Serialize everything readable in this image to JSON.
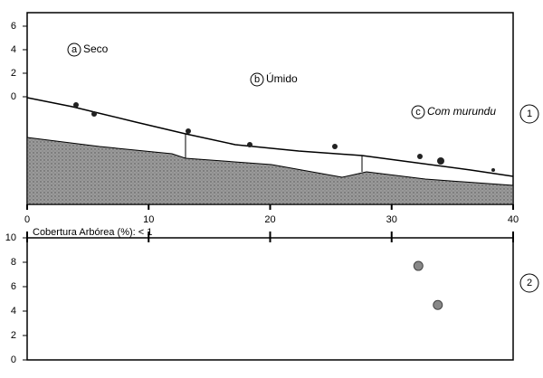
{
  "profile": {
    "ylim": [
      -9.15,
      7.15
    ],
    "yticks": [
      0,
      2,
      4,
      6
    ],
    "xlim": [
      0,
      40
    ],
    "xticks": [
      0,
      10,
      20,
      30,
      40
    ],
    "zones": [
      {
        "letter": "a",
        "label": "Seco"
      },
      {
        "letter": "b",
        "label": "Úmido"
      },
      {
        "letter": "c",
        "label": "Com murundu"
      }
    ],
    "panel": "1"
  },
  "cover": {
    "note": "Cobertura Arbórea (%): < 1",
    "ylim": [
      0,
      10
    ],
    "yticks": [
      0,
      2,
      4,
      6,
      8,
      10
    ],
    "x": [
      32.2,
      33.8
    ],
    "values": [
      7.7,
      4.5
    ],
    "panel": "2"
  }
}
